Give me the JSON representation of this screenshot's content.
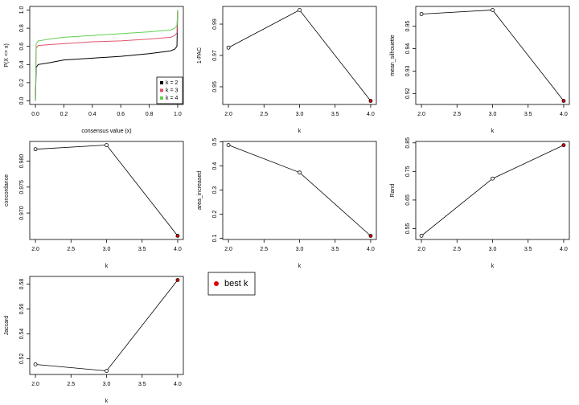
{
  "chart_data": [
    {
      "type": "ecdf",
      "xlabel": "consensus value (x)",
      "ylabel": "P(X <= x)",
      "x": [
        0,
        0.005,
        0.02,
        0.1,
        0.2,
        0.4,
        0.6,
        0.8,
        0.95,
        0.98,
        0.995,
        1.0
      ],
      "series": [
        {
          "name": "k = 2",
          "color": "#000000",
          "values": [
            0,
            0.37,
            0.4,
            0.42,
            0.45,
            0.47,
            0.49,
            0.52,
            0.55,
            0.57,
            0.6,
            1.0
          ]
        },
        {
          "name": "k = 3",
          "color": "#DF536B",
          "values": [
            0,
            0.58,
            0.61,
            0.62,
            0.63,
            0.65,
            0.66,
            0.68,
            0.7,
            0.72,
            0.75,
            1.0
          ]
        },
        {
          "name": "k = 4",
          "color": "#61D04F",
          "values": [
            0,
            0.63,
            0.66,
            0.68,
            0.7,
            0.72,
            0.74,
            0.76,
            0.78,
            0.8,
            0.83,
            1.0
          ]
        }
      ],
      "xlim": [
        -0.04,
        1.04
      ],
      "ylim": [
        -0.04,
        1.04
      ],
      "xticks": [
        {
          "value": 0,
          "label": "0.0"
        },
        0.2,
        0.4,
        0.6,
        0.8,
        {
          "value": 1,
          "label": "1.0"
        }
      ],
      "yticks": [
        {
          "value": 0,
          "label": "0.0"
        },
        0.2,
        0.4,
        0.6,
        0.8,
        {
          "value": 1,
          "label": "1.0"
        }
      ],
      "legend": "bottomright"
    },
    {
      "type": "line",
      "xlabel": "k",
      "ylabel": "1-PAC",
      "x": [
        2,
        3,
        4
      ],
      "values": [
        0.975,
        0.999,
        0.941
      ],
      "point_colors": [
        "#ffffff",
        "#ffffff",
        "#e00000"
      ],
      "xlim": [
        1.92,
        4.08
      ],
      "ylim": [
        0.9387,
        1.0013
      ],
      "yticks": [
        0.95,
        0.97,
        0.99
      ],
      "xticks": [
        {
          "value": 2,
          "label": "2.0"
        },
        2.5,
        {
          "value": 3,
          "label": "3.0"
        },
        3.5,
        {
          "value": 4,
          "label": "4.0"
        }
      ]
    },
    {
      "type": "line",
      "xlabel": "k",
      "ylabel": "mean_silhouette",
      "x": [
        2,
        3,
        4
      ],
      "values": [
        0.9554,
        0.9572,
        0.9167
      ],
      "point_colors": [
        "#ffffff",
        "#ffffff",
        "#e00000"
      ],
      "xlim": [
        1.92,
        4.08
      ],
      "ylim": [
        0.9151,
        0.9588
      ],
      "yticks": [
        0.92,
        0.93,
        0.94,
        0.95
      ],
      "xticks": [
        {
          "value": 2,
          "label": "2.0"
        },
        2.5,
        {
          "value": 3,
          "label": "3.0"
        },
        3.5,
        {
          "value": 4,
          "label": "4.0"
        }
      ]
    },
    {
      "type": "line",
      "xlabel": "k",
      "ylabel": "concordance",
      "x": [
        2,
        3,
        4
      ],
      "values": [
        0.9823,
        0.9831,
        0.9656
      ],
      "point_colors": [
        "#ffffff",
        "#ffffff",
        "#e00000"
      ],
      "xlim": [
        1.92,
        4.08
      ],
      "ylim": [
        0.9649,
        0.9838
      ],
      "yticks": [
        {
          "value": 0.97,
          "label": "0.970"
        },
        0.975,
        {
          "value": 0.98,
          "label": "0.980"
        }
      ],
      "xticks": [
        {
          "value": 2,
          "label": "2.0"
        },
        2.5,
        {
          "value": 3,
          "label": "3.0"
        },
        3.5,
        {
          "value": 4,
          "label": "4.0"
        }
      ]
    },
    {
      "type": "line",
      "xlabel": "k",
      "ylabel": "area_increased",
      "x": [
        2,
        3,
        4
      ],
      "values": [
        0.487,
        0.373,
        0.11
      ],
      "point_colors": [
        "#ffffff",
        "#ffffff",
        "#e00000"
      ],
      "xlim": [
        1.92,
        4.08
      ],
      "ylim": [
        0.095,
        0.502
      ],
      "yticks": [
        0.1,
        0.2,
        0.3,
        0.4,
        0.5
      ],
      "xticks": [
        {
          "value": 2,
          "label": "2.0"
        },
        2.5,
        {
          "value": 3,
          "label": "3.0"
        },
        3.5,
        {
          "value": 4,
          "label": "4.0"
        }
      ]
    },
    {
      "type": "line",
      "xlabel": "k",
      "ylabel": "Rand",
      "x": [
        2,
        3,
        4
      ],
      "values": [
        0.525,
        0.725,
        0.842
      ],
      "point_colors": [
        "#ffffff",
        "#ffffff",
        "#e00000"
      ],
      "xlim": [
        1.92,
        4.08
      ],
      "ylim": [
        0.512,
        0.855
      ],
      "yticks": [
        0.55,
        0.65,
        0.75,
        0.85
      ],
      "xticks": [
        {
          "value": 2,
          "label": "2.0"
        },
        2.5,
        {
          "value": 3,
          "label": "3.0"
        },
        3.5,
        {
          "value": 4,
          "label": "4.0"
        }
      ]
    },
    {
      "type": "line",
      "xlabel": "k",
      "ylabel": "Jaccard",
      "x": [
        2,
        3,
        4
      ],
      "values": [
        0.5154,
        0.5102,
        0.5833
      ],
      "point_colors": [
        "#ffffff",
        "#ffffff",
        "#e00000"
      ],
      "xlim": [
        1.92,
        4.08
      ],
      "ylim": [
        0.5073,
        0.5862
      ],
      "yticks": [
        0.52,
        0.54,
        0.56,
        0.58
      ],
      "xticks": [
        {
          "value": 2,
          "label": "2.0"
        },
        2.5,
        {
          "value": 3,
          "label": "3.0"
        },
        3.5,
        {
          "value": 4,
          "label": "4.0"
        }
      ]
    }
  ],
  "legend": {
    "label": "best k",
    "color": "#e00000"
  }
}
